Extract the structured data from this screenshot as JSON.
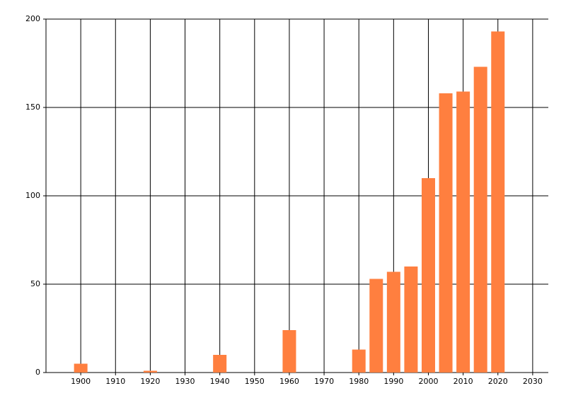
{
  "chart_data": {
    "type": "bar",
    "x": [
      1900,
      1920,
      1940,
      1960,
      1980,
      1985,
      1990,
      1995,
      2000,
      2005,
      2010,
      2015,
      2020
    ],
    "values": [
      5,
      1,
      10,
      24,
      13,
      53,
      57,
      60,
      110,
      158,
      159,
      173,
      193
    ],
    "color": "#ff7f3f",
    "xlim": [
      1890,
      2034.5
    ],
    "xticks": [
      1900,
      1910,
      1920,
      1930,
      1940,
      1950,
      1960,
      1970,
      1980,
      1990,
      2000,
      2010,
      2020,
      2030
    ],
    "ylim": [
      0,
      200
    ],
    "yticks": [
      0,
      50,
      100,
      150,
      200
    ],
    "grid": true
  }
}
